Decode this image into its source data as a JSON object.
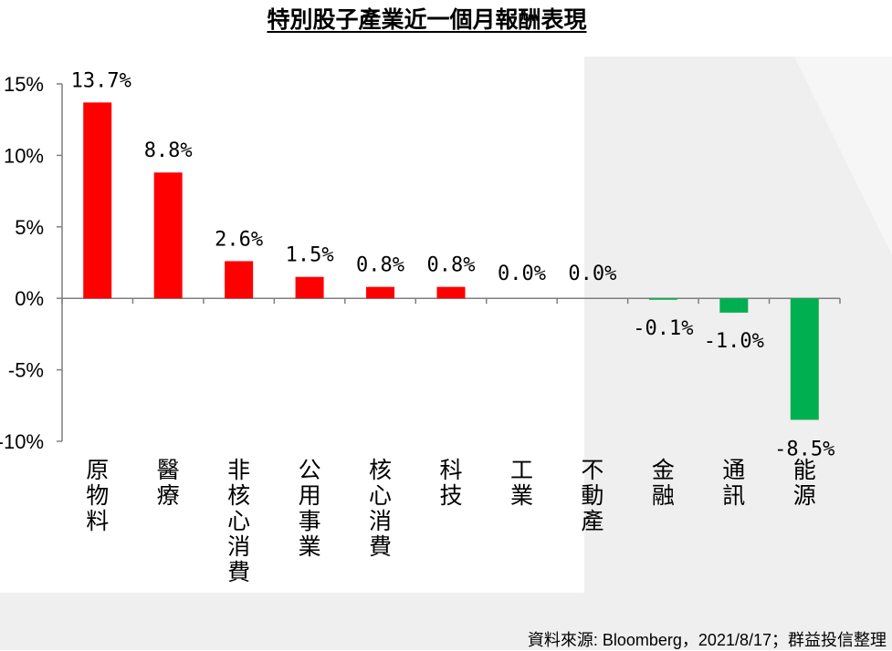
{
  "title": "特別股子產業近一個月報酬表現",
  "source": "資料來源: Bloomberg，2021/8/17；群益投信整理",
  "colors": {
    "positive": "#ff0000",
    "negative": "#00b050",
    "background_shape": "#efefef"
  },
  "chart_data": {
    "type": "bar",
    "title": "特別股子產業近一個月報酬表現",
    "categories": [
      "原物料",
      "醫療",
      "非核心消費",
      "公用事業",
      "核心消費",
      "科技",
      "工業",
      "不動產",
      "金融",
      "通訊",
      "能源"
    ],
    "values": [
      13.7,
      8.8,
      2.6,
      1.5,
      0.8,
      0.8,
      0.0,
      0.0,
      -0.1,
      -1.0,
      -8.5
    ],
    "value_labels": [
      "13.7%",
      "8.8%",
      "2.6%",
      "1.5%",
      "0.8%",
      "0.8%",
      "0.0%",
      "0.0%",
      "-0.1%",
      "-1.0%",
      "-8.5%"
    ],
    "ylim": [
      -10,
      15
    ],
    "yticks": [
      15,
      10,
      5,
      0,
      -5,
      -10
    ],
    "ytick_labels": [
      "15%",
      "10%",
      "5%",
      "0%",
      "-5%",
      "-10%"
    ],
    "xlabel": "",
    "ylabel": "",
    "grid": false,
    "legend": "none"
  }
}
